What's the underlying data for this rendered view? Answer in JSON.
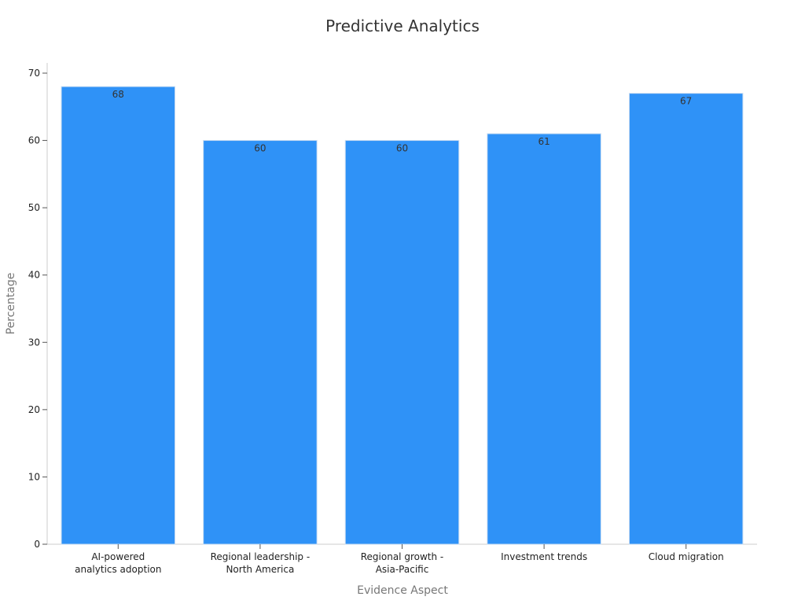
{
  "chart_data": {
    "type": "bar",
    "title": "Predictive Analytics",
    "xlabel": "Evidence Aspect",
    "ylabel": "Percentage",
    "categories": [
      [
        "AI-powered",
        "analytics adoption"
      ],
      [
        "Regional leadership -",
        "North America"
      ],
      [
        "Regional growth -",
        "Asia-Pacific"
      ],
      [
        "Investment trends"
      ],
      [
        "Cloud migration"
      ]
    ],
    "values": [
      68,
      60,
      60,
      61,
      67
    ],
    "ylim": [
      0,
      70
    ],
    "yticks": [
      0,
      10,
      20,
      30,
      40,
      50,
      60,
      70
    ],
    "grid": false,
    "bar_color": "#2f92f7",
    "bar_edge_color": "#c8dcf2",
    "show_data_labels": true
  }
}
